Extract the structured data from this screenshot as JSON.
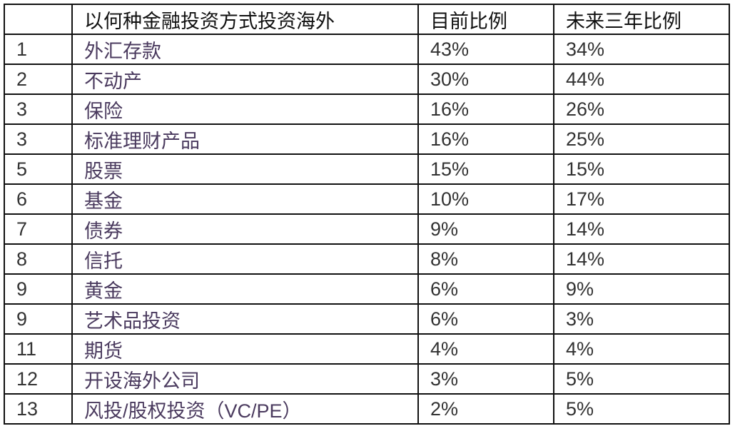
{
  "table": {
    "headers": [
      "",
      "以何种金融投资方式投资海外",
      "目前比例",
      "未来三年比例"
    ],
    "rows": [
      [
        "1",
        "外汇存款",
        "43%",
        "34%"
      ],
      [
        "2",
        "不动产",
        "30%",
        "44%"
      ],
      [
        "3",
        "保险",
        "16%",
        "26%"
      ],
      [
        "3",
        "标准理财产品",
        "16%",
        "25%"
      ],
      [
        "5",
        "股票",
        "15%",
        "15%"
      ],
      [
        "6",
        "基金",
        "10%",
        "17%"
      ],
      [
        "7",
        "债券",
        "9%",
        "14%"
      ],
      [
        "8",
        "信托",
        "8%",
        "14%"
      ],
      [
        "9",
        "黄金",
        "6%",
        "9%"
      ],
      [
        "9",
        "艺术品投资",
        "6%",
        "3%"
      ],
      [
        "11",
        "期货",
        "4%",
        "4%"
      ],
      [
        "12",
        "开设海外公司",
        "3%",
        "5%"
      ],
      [
        "13",
        "风投/股权投资（VC/PE）",
        "2%",
        "5%"
      ]
    ]
  },
  "colors": {
    "border": "#111111",
    "name_text": "#4a3a5e",
    "value_text": "#333333"
  }
}
